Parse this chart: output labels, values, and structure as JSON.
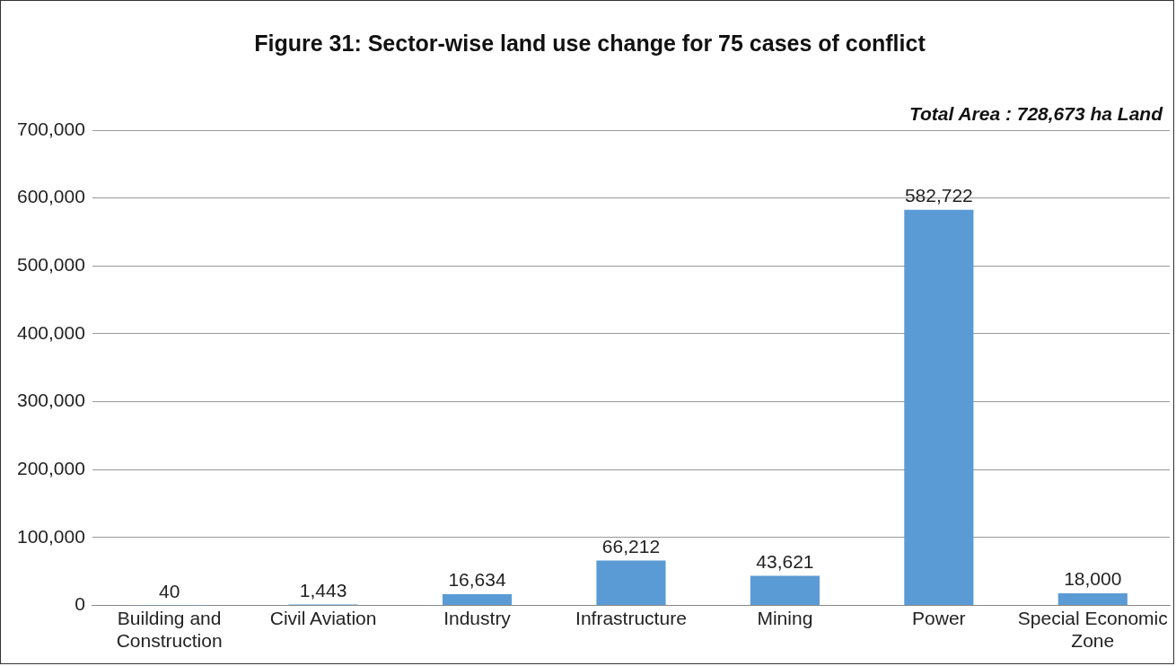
{
  "chart_data": {
    "type": "bar",
    "title": "Figure 31: Sector-wise land use change for 75 cases of conflict",
    "annotations": [
      "Total Area : 728,673 ha Land"
    ],
    "categories": [
      "Building and Construction",
      "Civil Aviation",
      "Industry",
      "Infrastructure",
      "Mining",
      "Power",
      "Special Economic Zone"
    ],
    "values": [
      40,
      1443,
      16634,
      66212,
      43621,
      582722,
      18000
    ],
    "value_labels": [
      "40",
      "1,443",
      "16,634",
      "66,212",
      "43,621",
      "582,722",
      "18,000"
    ],
    "color": "#5b9bd5",
    "ylim": [
      0,
      700000
    ],
    "yticks": [
      0,
      {
        "value": 100000,
        "label": "100,000"
      },
      {
        "value": 200000,
        "label": "200,000"
      },
      {
        "value": 300000,
        "label": "300,000"
      },
      {
        "value": 400000,
        "label": "400,000"
      },
      {
        "value": 500000,
        "label": "500,000"
      },
      {
        "value": 600000,
        "label": "600,000"
      },
      {
        "value": 700000,
        "label": "700,000"
      }
    ],
    "grid": "y",
    "legend": false
  }
}
